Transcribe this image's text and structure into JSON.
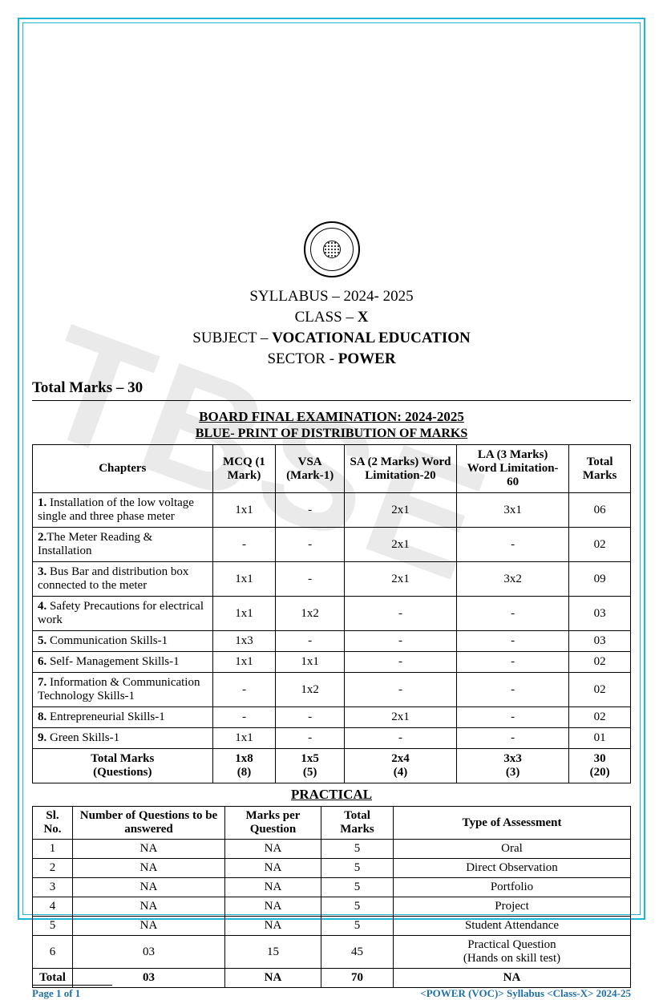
{
  "colors": {
    "border": "#1fb5d4",
    "text": "#000000",
    "footer": "#1f6fa8",
    "watermark": "#d9d9d9"
  },
  "watermark": "TBSE",
  "header": {
    "syllabus_line": "SYLLABUS – 2024- 2025",
    "class_label": "CLASS – ",
    "class_value": "X",
    "subject_label": "SUBJECT – ",
    "subject_value": "VOCATIONAL EDUCATION",
    "sector_label": "SECTOR - ",
    "sector_value": "POWER",
    "total_marks": "Total Marks – 30"
  },
  "exam": {
    "title": "BOARD FINAL EXAMINATION: 2024-2025",
    "subtitle": "BLUE- PRINT OF DISTRIBUTION OF MARKS",
    "columns": [
      "Chapters",
      "MCQ (1 Mark)",
      "VSA (Mark-1)",
      "SA (2 Marks) Word Limitation-20",
      "LA (3 Marks) Word Limitation-60",
      "Total Marks"
    ],
    "rows": [
      {
        "chapter": "1. Installation of the low voltage single and three phase meter",
        "mcq": "1x1",
        "vsa": "-",
        "sa": "2x1",
        "la": "3x1",
        "total": "06"
      },
      {
        "chapter": "2.The Meter Reading & Installation",
        "mcq": "-",
        "vsa": "-",
        "sa": "2x1",
        "la": "-",
        "total": "02"
      },
      {
        "chapter": "3. Bus Bar and distribution box connected to the meter",
        "mcq": "1x1",
        "vsa": "-",
        "sa": "2x1",
        "la": "3x2",
        "total": "09"
      },
      {
        "chapter": "4. Safety Precautions for electrical work",
        "mcq": "1x1",
        "vsa": "1x2",
        "sa": "-",
        "la": "-",
        "total": "03"
      },
      {
        "chapter": "5. Communication Skills-1",
        "mcq": "1x3",
        "vsa": "-",
        "sa": "-",
        "la": "-",
        "total": "03"
      },
      {
        "chapter": "6. Self- Management Skills-1",
        "mcq": "1x1",
        "vsa": "1x1",
        "sa": "-",
        "la": "-",
        "total": "02"
      },
      {
        "chapter": "7. Information & Communication Technology Skills-1",
        "mcq": "-",
        "vsa": "1x2",
        "sa": "-",
        "la": "-",
        "total": "02"
      },
      {
        "chapter": "8. Entrepreneurial Skills-1",
        "mcq": "-",
        "vsa": "-",
        "sa": "2x1",
        "la": "-",
        "total": "02"
      },
      {
        "chapter": "9. Green Skills-1",
        "mcq": "1x1",
        "vsa": "-",
        "sa": "-",
        "la": "-",
        "total": "01"
      }
    ],
    "totals": {
      "label": "Total Marks (Questions)",
      "mcq": "1x8 (8)",
      "vsa": "1x5 (5)",
      "sa": "2x4 (4)",
      "la": "3x3 (3)",
      "total": "30 (20)"
    }
  },
  "practical": {
    "title": "PRACTICAL",
    "columns": [
      "Sl. No.",
      "Number of Questions to be answered",
      "Marks per Question",
      "Total Marks",
      "Type of Assessment"
    ],
    "rows": [
      {
        "sl": "1",
        "nq": "NA",
        "mpq": "NA",
        "tm": "5",
        "type": "Oral"
      },
      {
        "sl": "2",
        "nq": "NA",
        "mpq": "NA",
        "tm": "5",
        "type": "Direct Observation"
      },
      {
        "sl": "3",
        "nq": "NA",
        "mpq": "NA",
        "tm": "5",
        "type": "Portfolio"
      },
      {
        "sl": "4",
        "nq": "NA",
        "mpq": "NA",
        "tm": "5",
        "type": "Project"
      },
      {
        "sl": "5",
        "nq": "NA",
        "mpq": "NA",
        "tm": "5",
        "type": "Student Attendance"
      },
      {
        "sl": "6",
        "nq": "03",
        "mpq": "15",
        "tm": "45",
        "type": "Practical Question (Hands on skill test)"
      }
    ],
    "total": {
      "label": "Total",
      "nq": "03",
      "mpq": "NA",
      "tm": "70",
      "type": "NA"
    }
  },
  "footer": {
    "page": "Page 1 of 1",
    "right": "<POWER (VOC)> Syllabus <Class-X> 2024-25"
  }
}
